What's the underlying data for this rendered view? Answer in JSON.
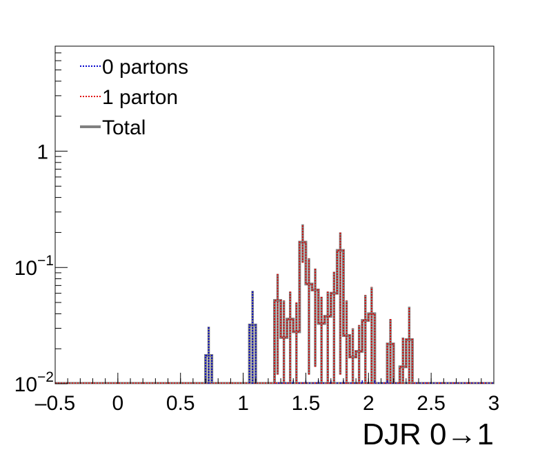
{
  "chart_data": {
    "type": "histogram",
    "xlabel": "DJR 0→1",
    "ylabel": "",
    "log_y": true,
    "xlim": [
      -0.5,
      3
    ],
    "ylim": [
      0.01,
      8
    ],
    "x_tick_labels": [
      "–0.5",
      "0",
      "0.5",
      "1",
      "1.5",
      "2",
      "2.5",
      "3"
    ],
    "x_ticks": [
      -0.5,
      0,
      0.5,
      1,
      1.5,
      2,
      2.5,
      3
    ],
    "y_ticks": [
      {
        "value": 0.01,
        "base": "10",
        "exp": "−2"
      },
      {
        "value": 0.1,
        "base": "10",
        "exp": "−1"
      },
      {
        "value": 1,
        "label": "1"
      }
    ],
    "bin_width": 0.05,
    "legend": {
      "position": "top-left",
      "entries": [
        {
          "label": "0 partons",
          "color": "#0000cc",
          "style": "dotted"
        },
        {
          "label": "1 parton",
          "color": "#e00000",
          "style": "dotted"
        },
        {
          "label": "Total",
          "color": "#808080",
          "style": "solid"
        }
      ]
    },
    "series": [
      {
        "name": "0 partons",
        "color": "#0000cc",
        "bins": [
          {
            "x": 0.7,
            "y": 0.0175,
            "err": [
              0.0095,
              0.031
            ]
          },
          {
            "x": 1.05,
            "y": 0.032,
            "err": [
              0.0095,
              0.063
            ]
          }
        ]
      },
      {
        "name": "1 parton",
        "color": "#e00000",
        "bins": [
          {
            "x": 1.25,
            "y": 0.052,
            "err": [
              0.012,
              0.088
            ]
          },
          {
            "x": 1.3,
            "y": 0.025,
            "err": [
              0.0095,
              0.052
            ]
          },
          {
            "x": 1.35,
            "y": 0.036,
            "err": [
              0.0095,
              0.062
            ]
          },
          {
            "x": 1.4,
            "y": 0.028,
            "err": [
              0.0095,
              0.05
            ]
          },
          {
            "x": 1.45,
            "y": 0.165,
            "err": [
              0.11,
              0.235
            ]
          },
          {
            "x": 1.5,
            "y": 0.072,
            "err": [
              0.012,
              0.12
            ]
          },
          {
            "x": 1.55,
            "y": 0.064,
            "err": [
              0.014,
              0.098
            ]
          },
          {
            "x": 1.6,
            "y": 0.033,
            "err": [
              0.0095,
              0.056
            ]
          },
          {
            "x": 1.65,
            "y": 0.038,
            "err": [
              0.0095,
              0.062
            ]
          },
          {
            "x": 1.7,
            "y": 0.06,
            "err": [
              0.0095,
              0.092
            ]
          },
          {
            "x": 1.75,
            "y": 0.14,
            "err": [
              0.012,
              0.2
            ]
          },
          {
            "x": 1.8,
            "y": 0.026,
            "err": [
              0.0095,
              0.052
            ]
          },
          {
            "x": 1.85,
            "y": 0.017,
            "err": [
              0.0095,
              0.03
            ]
          },
          {
            "x": 1.9,
            "y": 0.019,
            "err": [
              0.0095,
              0.032
            ]
          },
          {
            "x": 1.95,
            "y": 0.035,
            "err": [
              0.0095,
              0.058
            ]
          },
          {
            "x": 2.0,
            "y": 0.04,
            "err": [
              0.0095,
              0.068
            ]
          },
          {
            "x": 2.15,
            "y": 0.022,
            "err": [
              0.0095,
              0.036
            ]
          },
          {
            "x": 2.25,
            "y": 0.014,
            "err": [
              0.0095,
              0.025
            ]
          },
          {
            "x": 2.3,
            "y": 0.024,
            "err": [
              0.0095,
              0.046
            ]
          }
        ]
      }
    ]
  }
}
